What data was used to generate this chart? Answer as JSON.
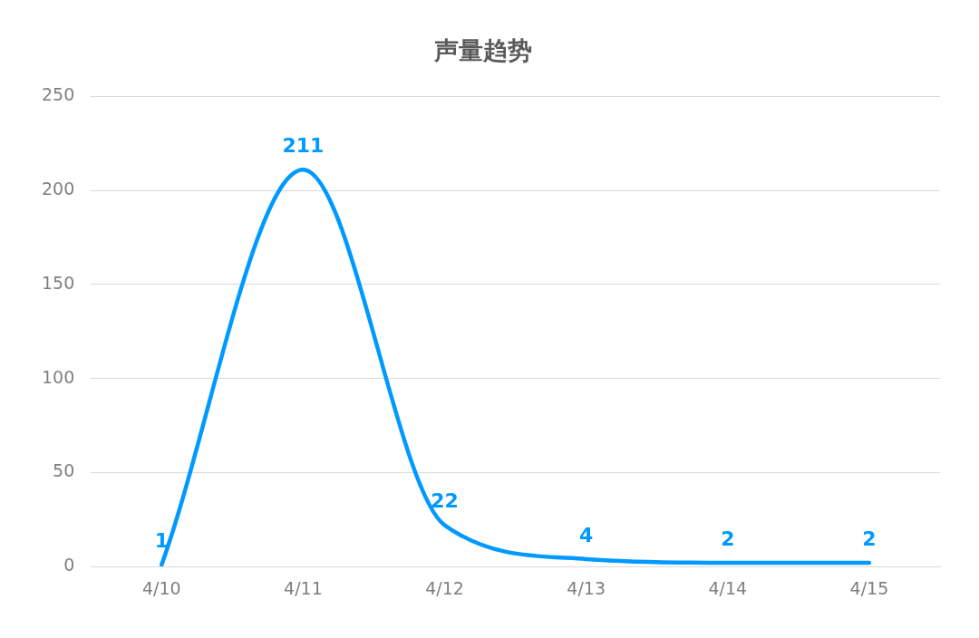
{
  "chart_data": {
    "type": "line",
    "title": "声量趋势",
    "categories": [
      "4/10",
      "4/11",
      "4/12",
      "4/13",
      "4/14",
      "4/15"
    ],
    "series": [
      {
        "color": "#0099ff",
        "values": [
          1,
          211,
          22,
          4,
          2,
          2
        ]
      }
    ],
    "ylim": [
      0,
      250
    ],
    "yticks": [
      0,
      50,
      100,
      150,
      200,
      250
    ],
    "grid": "y",
    "legend": false,
    "marker": "none",
    "line_style": "solid",
    "data_labels": true
  }
}
